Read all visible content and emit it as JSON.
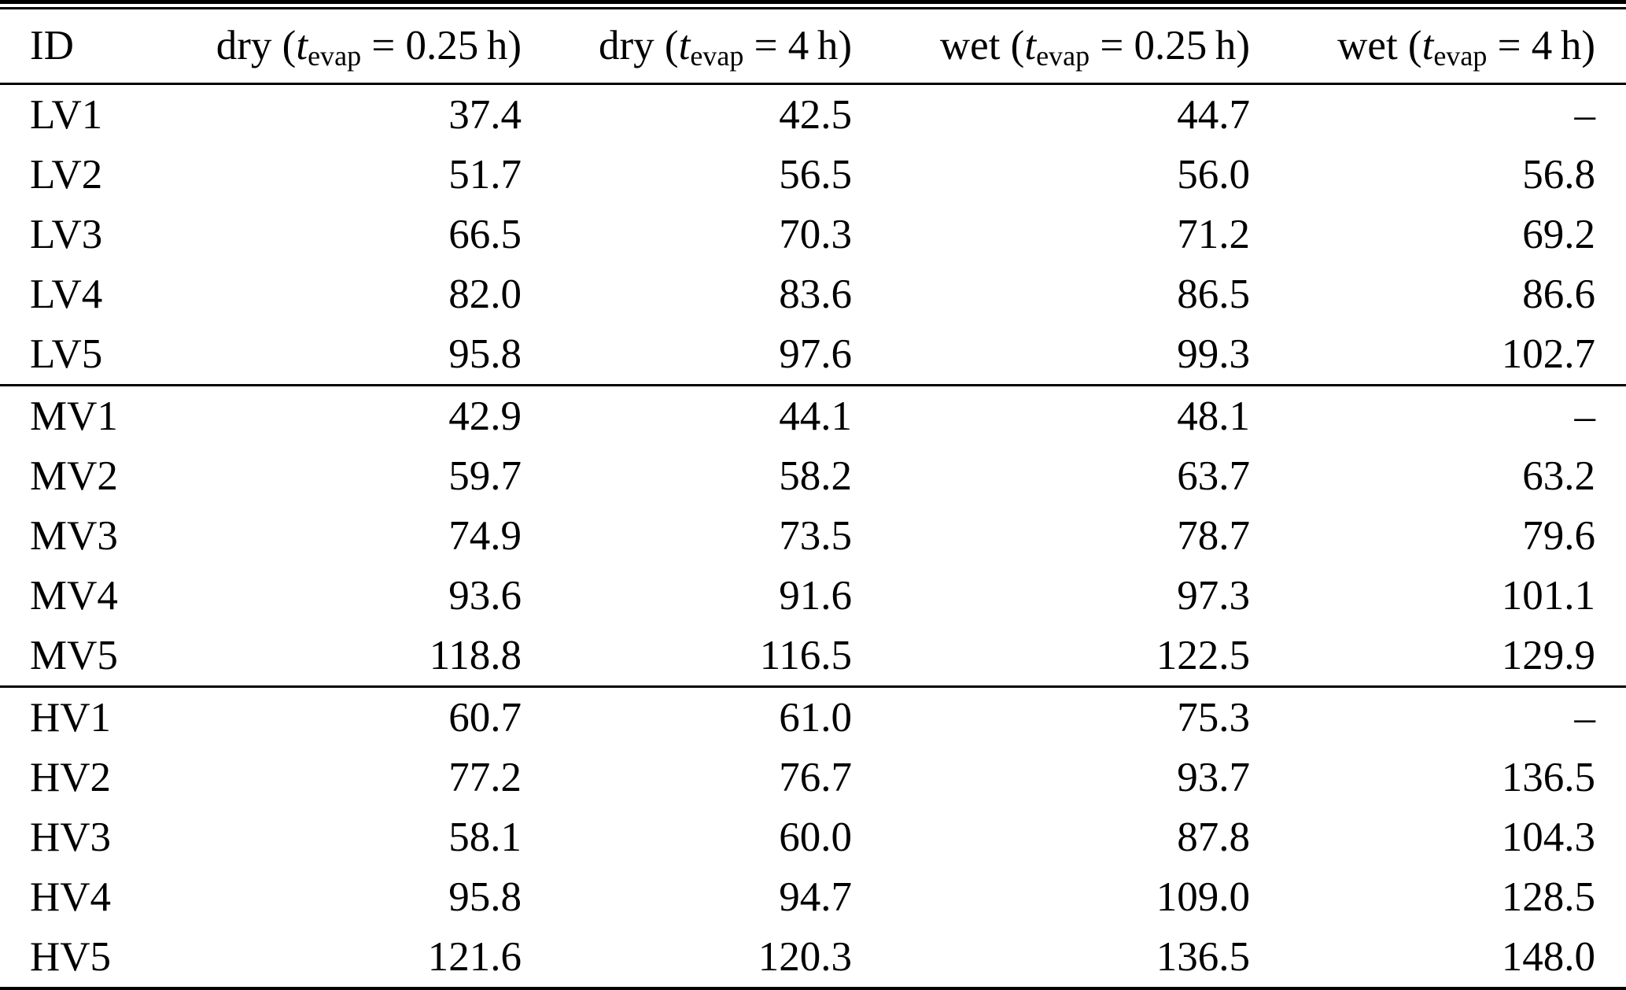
{
  "page": {
    "background_color": "#ffffff",
    "text_color": "#000000"
  },
  "table": {
    "missing_value_symbol": "–",
    "headers": [
      {
        "label": "ID"
      },
      {
        "prefix": "dry (",
        "var": "t",
        "sub": "evap",
        "suffix": " = 0.25 h)"
      },
      {
        "prefix": "dry (",
        "var": "t",
        "sub": "evap",
        "suffix": " = 4 h)"
      },
      {
        "prefix": "wet (",
        "var": "t",
        "sub": "evap",
        "suffix": " = 0.25 h)"
      },
      {
        "prefix": "wet (",
        "var": "t",
        "sub": "evap",
        "suffix": " = 4 h)"
      }
    ],
    "groups": [
      {
        "rows": [
          {
            "id": "LV1",
            "values": [
              "37.4",
              "42.5",
              "44.7",
              "–"
            ]
          },
          {
            "id": "LV2",
            "values": [
              "51.7",
              "56.5",
              "56.0",
              "56.8"
            ]
          },
          {
            "id": "LV3",
            "values": [
              "66.5",
              "70.3",
              "71.2",
              "69.2"
            ]
          },
          {
            "id": "LV4",
            "values": [
              "82.0",
              "83.6",
              "86.5",
              "86.6"
            ]
          },
          {
            "id": "LV5",
            "values": [
              "95.8",
              "97.6",
              "99.3",
              "102.7"
            ]
          }
        ]
      },
      {
        "rows": [
          {
            "id": "MV1",
            "values": [
              "42.9",
              "44.1",
              "48.1",
              "–"
            ]
          },
          {
            "id": "MV2",
            "values": [
              "59.7",
              "58.2",
              "63.7",
              "63.2"
            ]
          },
          {
            "id": "MV3",
            "values": [
              "74.9",
              "73.5",
              "78.7",
              "79.6"
            ]
          },
          {
            "id": "MV4",
            "values": [
              "93.6",
              "91.6",
              "97.3",
              "101.1"
            ]
          },
          {
            "id": "MV5",
            "values": [
              "118.8",
              "116.5",
              "122.5",
              "129.9"
            ]
          }
        ]
      },
      {
        "rows": [
          {
            "id": "HV1",
            "values": [
              "60.7",
              "61.0",
              "75.3",
              "–"
            ]
          },
          {
            "id": "HV2",
            "values": [
              "77.2",
              "76.7",
              "93.7",
              "136.5"
            ]
          },
          {
            "id": "HV3",
            "values": [
              "58.1",
              "60.0",
              "87.8",
              "104.3"
            ]
          },
          {
            "id": "HV4",
            "values": [
              "95.8",
              "94.7",
              "109.0",
              "128.5"
            ]
          },
          {
            "id": "HV5",
            "values": [
              "121.6",
              "120.3",
              "136.5",
              "148.0"
            ]
          }
        ]
      }
    ]
  }
}
